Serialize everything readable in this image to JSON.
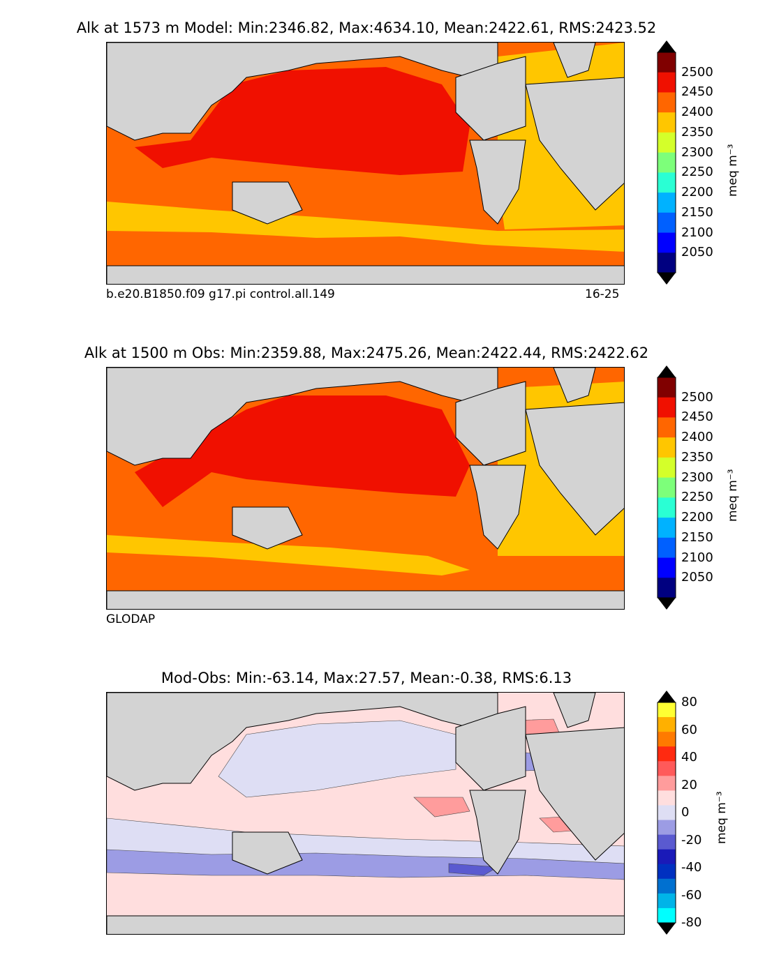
{
  "panels": [
    {
      "title": "Alk at 1573 m Model: Min:2346.82, Max:4634.10, Mean:2422.61, RMS:2423.52",
      "footer_left": "b.e20.B1850.f09 g17.pi control.all.149",
      "footer_right": "16-25"
    },
    {
      "title": "Alk at 1500 m Obs: Min:2359.88, Max:2475.26, Mean:2422.44, RMS:2422.62",
      "footer_left": "GLODAP",
      "footer_right": ""
    },
    {
      "title": "Mod-Obs: Min:-63.14, Max:27.57, Mean:-0.38, RMS:6.13",
      "footer_left": "",
      "footer_right": ""
    }
  ],
  "colorbar_alk": {
    "unit": "meq m⁻³",
    "labels": [
      "2500",
      "2450",
      "2400",
      "2350",
      "2300",
      "2250",
      "2200",
      "2150",
      "2100",
      "2050"
    ],
    "colors": [
      "#800000",
      "#f01000",
      "#ff6600",
      "#ffc600",
      "#d4ff2a",
      "#7dff7a",
      "#2affd4",
      "#00b2ff",
      "#0060ff",
      "#0000ff",
      "#000080"
    ]
  },
  "colorbar_diff": {
    "unit": "meq m⁻³",
    "labels": [
      "80",
      "60",
      "40",
      "20",
      "0",
      "-20",
      "-40",
      "-60",
      "-80"
    ],
    "colors": [
      "#ffff33",
      "#ffb000",
      "#ff7a00",
      "#ff2a10",
      "#ff5a5a",
      "#ff9c9c",
      "#ffdede",
      "#dedef4",
      "#9c9ce4",
      "#5a5ad0",
      "#1a1ab8",
      "#0030c0",
      "#0070d0",
      "#00b4e8",
      "#00ffff"
    ]
  },
  "map_colors": {
    "land": "#d3d3d3",
    "ice": "#ffffff",
    "alk_2450": "#f01000",
    "alk_2400": "#ff6600",
    "alk_2350": "#ffc600",
    "alk_2500": "#800000",
    "diff_pos10": "#ffdede",
    "diff_pos20": "#ff9c9c",
    "diff_neg10": "#dedef4",
    "diff_neg20": "#9c9ce4",
    "diff_neg30": "#5a5ad0"
  }
}
